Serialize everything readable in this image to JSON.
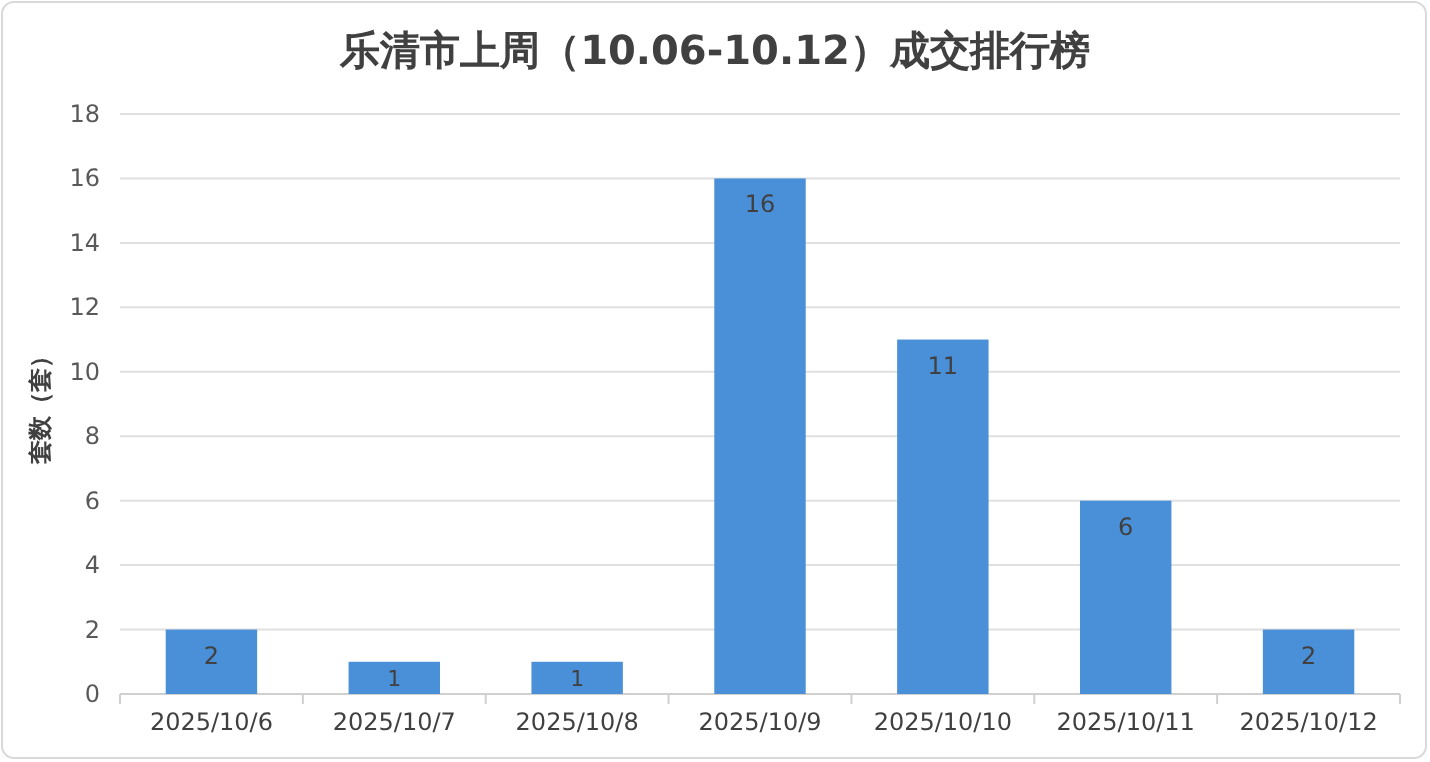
{
  "chart_data": {
    "type": "bar",
    "title": "乐清市上周（10.06-10.12）成交排行榜",
    "ylabel": "套数（套）",
    "categories": [
      "2025/10/6",
      "2025/10/7",
      "2025/10/8",
      "2025/10/9",
      "2025/10/10",
      "2025/10/11",
      "2025/10/12"
    ],
    "values": [
      2,
      1,
      1,
      16,
      11,
      6,
      2
    ],
    "color": "#4a90d9",
    "ylim": [
      0,
      18
    ],
    "yticks": [
      0,
      2,
      4,
      6,
      8,
      10,
      12,
      14,
      16,
      18
    ],
    "grid": "y",
    "data_labels": true
  }
}
